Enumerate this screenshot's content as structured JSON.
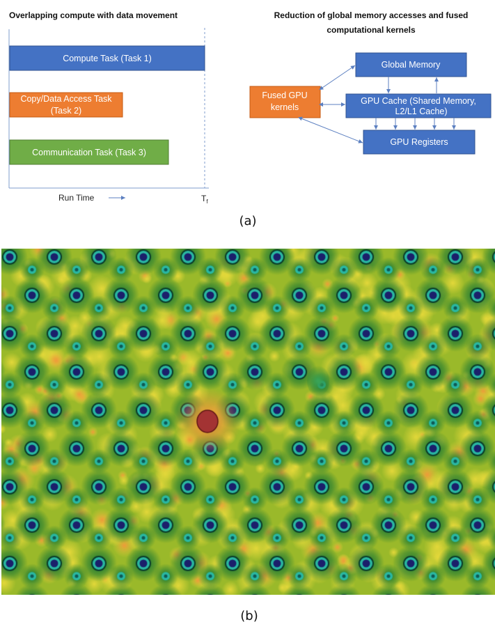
{
  "panel_a": {
    "left": {
      "title": "Overlapping compute with data movement",
      "tasks": [
        {
          "label": "Compute Task (Task 1)",
          "color": "#4472c4"
        },
        {
          "label_line1": "Copy/Data Access Task",
          "label_line2": "(Task 2)",
          "color": "#ed7d31"
        },
        {
          "label": "Communication Task (Task 3)",
          "color": "#70ad47"
        }
      ],
      "x_label": "Run Time",
      "end_label_main": "T",
      "end_label_sub": "f"
    },
    "right": {
      "title_line1": "Reduction of global memory accesses and fused",
      "title_line2": "computational kernels",
      "global_memory": "Global Memory",
      "gpu_cache_line1": "GPU Cache (Shared Memory,",
      "gpu_cache_line2": "L2/L1 Cache)",
      "gpu_registers": "GPU Registers",
      "fused_line1": "Fused GPU",
      "fused_line2": "kernels",
      "blue": "#4472c4",
      "orange": "#ed7d31",
      "arrow": "#5b7fc0"
    },
    "caption": "(a)"
  },
  "panel_b": {
    "caption": "(b)",
    "colors": {
      "background": "#9ab92a",
      "dark_green": "#1f7a33",
      "yellow": "#e3d83a",
      "orange": "#ef9a3a",
      "cyan_ring": "#2ab7a2",
      "dark_navy": "#1b1f6b",
      "defect_red": "#a33333"
    }
  }
}
